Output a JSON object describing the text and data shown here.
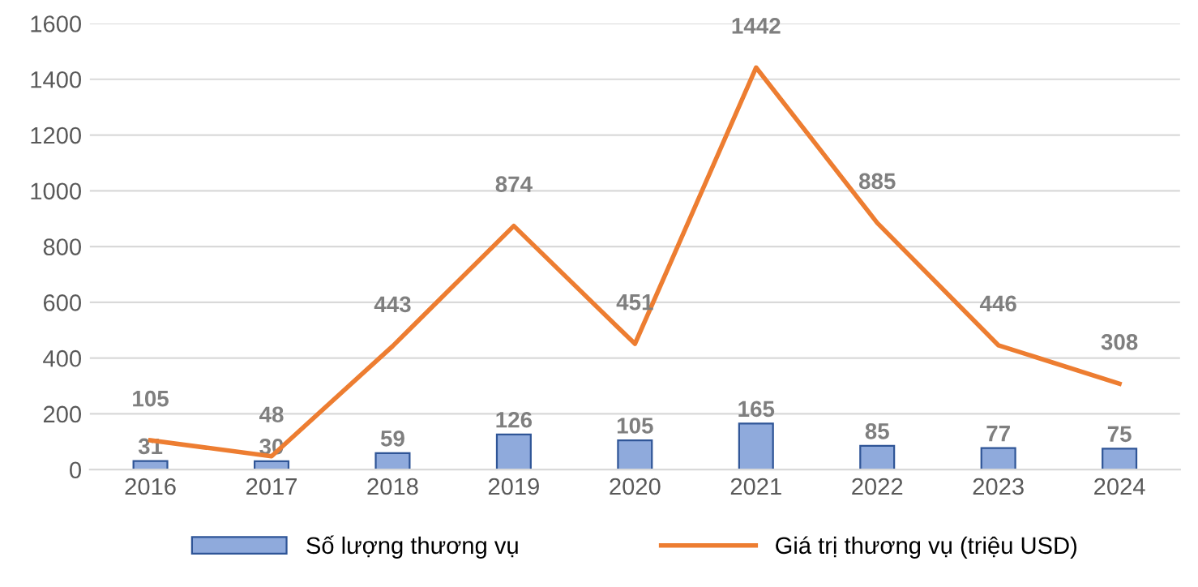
{
  "chart_data": {
    "type": "bar",
    "categories": [
      "2016",
      "2017",
      "2018",
      "2019",
      "2020",
      "2021",
      "2022",
      "2023",
      "2024"
    ],
    "series": [
      {
        "name": "Số lượng thương vụ",
        "color": "#8faadc",
        "values": [
          31,
          30,
          59,
          126,
          105,
          165,
          85,
          77,
          75
        ]
      },
      {
        "name": "Giá trị thương vụ (triệu USD)",
        "type": "line",
        "color": "#ed7d31",
        "values": [
          105,
          48,
          443,
          874,
          451,
          1442,
          885,
          446,
          308
        ]
      }
    ],
    "ylim": [
      0,
      1600
    ],
    "yticks": [
      0,
      200,
      400,
      600,
      800,
      1000,
      1200,
      1400,
      1600
    ],
    "grid": "y",
    "legend": "bottom",
    "data_labels": true
  }
}
